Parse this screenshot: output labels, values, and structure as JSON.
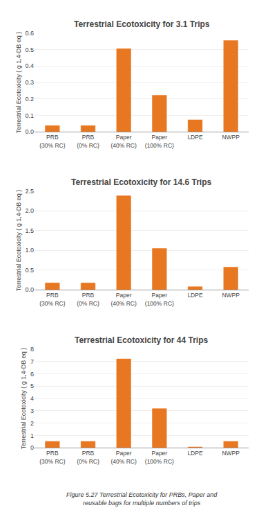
{
  "chart_data": [
    {
      "type": "bar",
      "title": "Terrestrial Ecotoxicity for 3.1 Trips",
      "categories": [
        "PRB\n(30% RC)",
        "PRB\n(0% RC)",
        "Paper\n(40% RC)",
        "Paper\n(100% RC)",
        "LDPE",
        "NWPP"
      ],
      "values": [
        0.038,
        0.038,
        0.505,
        0.222,
        0.073,
        0.555
      ],
      "color": "#E87722",
      "ylabel": "Terrestrial Ecotoxicity ( g 1,4-DB eq )",
      "ylim": [
        0,
        0.6
      ],
      "yticks": [
        {
          "value": 0,
          "label": "0.0"
        },
        0.1,
        0.2,
        0.3,
        0.4,
        0.5,
        0.6
      ],
      "grid": true
    },
    {
      "type": "bar",
      "title": "Terrestrial Ecotoxicity for 14.6 Trips",
      "categories": [
        "PRB\n(30% RC)",
        "PRB\n(0% RC)",
        "Paper\n(40% RC)",
        "Paper\n(100% RC)",
        "LDPE",
        "NWPP"
      ],
      "values": [
        0.175,
        0.175,
        2.38,
        1.05,
        0.08,
        0.575
      ],
      "color": "#E87722",
      "ylabel": "Terrestrial Ecotoxicity ( g 1,4-DB eq )",
      "ylim": [
        0,
        2.5
      ],
      "yticks": [
        {
          "value": 0,
          "label": "0.0"
        },
        0.5,
        {
          "value": 1.0,
          "label": "1.0"
        },
        1.5,
        {
          "value": 2.0,
          "label": "2.0"
        },
        2.5
      ],
      "grid": true
    },
    {
      "type": "bar",
      "title": "Terrestrial Ecotoxicity for 44 Trips",
      "categories": [
        "PRB\n(30% RC)",
        "PRB\n(0% RC)",
        "Paper\n(40% RC)",
        "Paper\n(100% RC)",
        "LDPE",
        "NWPP"
      ],
      "values": [
        0.52,
        0.52,
        7.2,
        3.18,
        0.07,
        0.52
      ],
      "color": "#E87722",
      "ylabel": "Terrestrial Ecotoxicity ( g 1,4-DB eq )",
      "ylim": [
        0,
        8
      ],
      "yticks": [
        0,
        1,
        2,
        3,
        4,
        5,
        6,
        7,
        8
      ],
      "grid": true
    }
  ],
  "caption": "Figure 5.27 Terrestrial Ecotoxicity for PRBs, Paper and reusable bags for multiple numbers of trips"
}
